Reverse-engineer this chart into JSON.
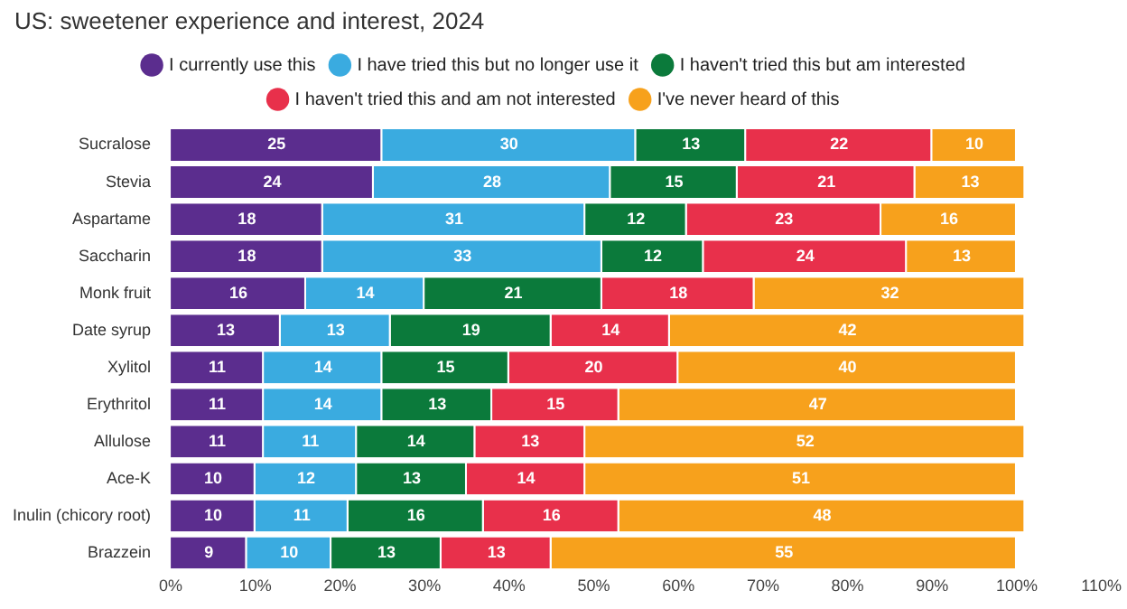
{
  "chart_data": {
    "type": "bar",
    "orientation": "horizontal",
    "stacked": true,
    "title": "US: sweetener experience and interest, 2024",
    "categories": [
      "Sucralose",
      "Stevia",
      "Aspartame",
      "Saccharin",
      "Monk fruit",
      "Date syrup",
      "Xylitol",
      "Erythritol",
      "Allulose",
      "Ace-K",
      "Inulin (chicory root)",
      "Brazzein"
    ],
    "series": [
      {
        "name": "I currently use this",
        "color": "#5b2d8e",
        "values": [
          25,
          24,
          18,
          18,
          16,
          13,
          11,
          11,
          11,
          10,
          10,
          9
        ]
      },
      {
        "name": "I have tried this but no longer use it",
        "color": "#3aabe0",
        "values": [
          30,
          28,
          31,
          33,
          14,
          13,
          14,
          14,
          11,
          12,
          11,
          10
        ]
      },
      {
        "name": "I haven't tried this but am interested",
        "color": "#0b7a3b",
        "values": [
          13,
          15,
          12,
          12,
          21,
          19,
          15,
          13,
          14,
          13,
          16,
          13
        ]
      },
      {
        "name": "I haven't tried this and am not interested",
        "color": "#e8304b",
        "values": [
          22,
          21,
          23,
          24,
          18,
          14,
          20,
          15,
          13,
          14,
          16,
          13
        ]
      },
      {
        "name": "I've never heard of this",
        "color": "#f7a11c",
        "values": [
          10,
          13,
          16,
          13,
          32,
          42,
          40,
          47,
          52,
          51,
          48,
          55
        ]
      }
    ],
    "xlim": [
      0,
      110
    ],
    "xticks": [
      {
        "value": 0,
        "label": "0%"
      },
      {
        "value": 10,
        "label": "10%"
      },
      {
        "value": 20,
        "label": "20%"
      },
      {
        "value": 30,
        "label": "30%"
      },
      {
        "value": 40,
        "label": "40%"
      },
      {
        "value": 50,
        "label": "50%"
      },
      {
        "value": 60,
        "label": "60%"
      },
      {
        "value": 70,
        "label": "70%"
      },
      {
        "value": 80,
        "label": "80%"
      },
      {
        "value": 90,
        "label": "90%"
      },
      {
        "value": 100,
        "label": "100%"
      },
      {
        "value": 110,
        "label": "110%"
      }
    ],
    "data_labels": true,
    "legend": "top",
    "grid": false
  }
}
